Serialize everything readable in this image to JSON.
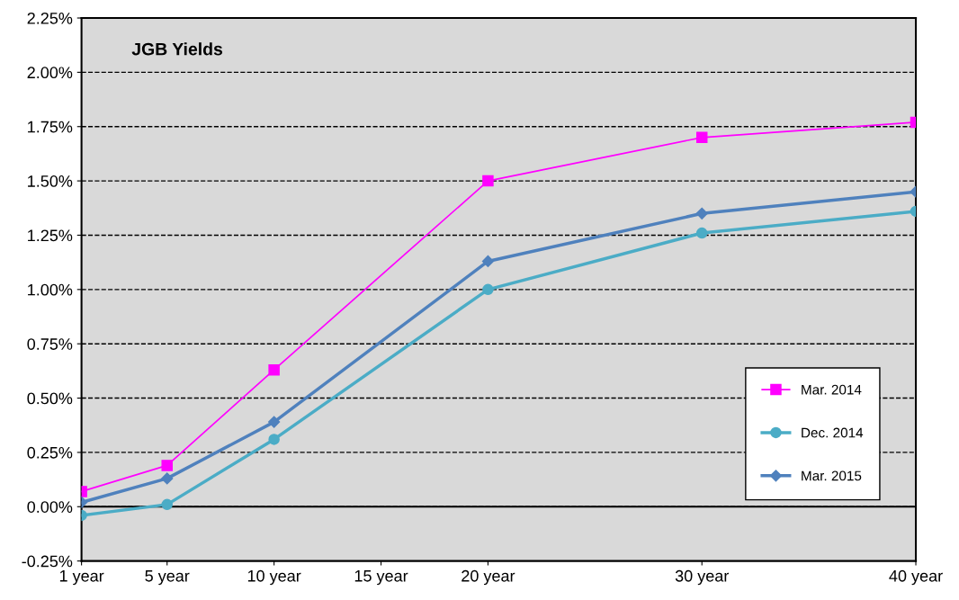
{
  "chart_data": {
    "type": "line",
    "title": "JGB Yields",
    "xlim": [
      1,
      40
    ],
    "xticks": [
      {
        "value": 1,
        "label": "1 year"
      },
      {
        "value": 5,
        "label": "5 year"
      },
      {
        "value": 10,
        "label": "10 year"
      },
      {
        "value": 15,
        "label": "15 year"
      },
      {
        "value": 20,
        "label": "20 year"
      },
      {
        "value": 30,
        "label": "30 year"
      },
      {
        "value": 40,
        "label": "40 year"
      }
    ],
    "ylim": [
      -0.25,
      2.25
    ],
    "yticks": [
      {
        "value": -0.25,
        "label": "-0.25%"
      },
      {
        "value": 0,
        "label": "0.00%"
      },
      {
        "value": 0.25,
        "label": "0.25%"
      },
      {
        "value": 0.5,
        "label": "0.50%"
      },
      {
        "value": 0.75,
        "label": "0.75%"
      },
      {
        "value": 1,
        "label": "1.00%"
      },
      {
        "value": 1.25,
        "label": "1.25%"
      },
      {
        "value": 1.5,
        "label": "1.50%"
      },
      {
        "value": 1.75,
        "label": "1.75%"
      },
      {
        "value": 2,
        "label": "2.00%"
      },
      {
        "value": 2.25,
        "label": "2.25%"
      }
    ],
    "x": [
      1,
      5,
      10,
      20,
      30,
      40
    ],
    "series": [
      {
        "name": "Mar. 2014",
        "color": "#ff00ff",
        "marker": "square",
        "values": [
          0.07,
          0.19,
          0.63,
          1.5,
          1.7,
          1.77
        ]
      },
      {
        "name": "Dec. 2014",
        "color": "#4bacc6",
        "marker": "circle",
        "values": [
          -0.04,
          0.01,
          0.31,
          1.0,
          1.26,
          1.36
        ]
      },
      {
        "name": "Mar. 2015",
        "color": "#4f81bd",
        "marker": "diamond",
        "values": [
          0.02,
          0.13,
          0.39,
          1.13,
          1.35,
          1.45
        ]
      }
    ],
    "grid": "y",
    "legend": "bottom right",
    "line_style": "solid",
    "ref_lines": [
      {
        "axis": "y",
        "value": 0,
        "color": "#000000"
      }
    ]
  }
}
